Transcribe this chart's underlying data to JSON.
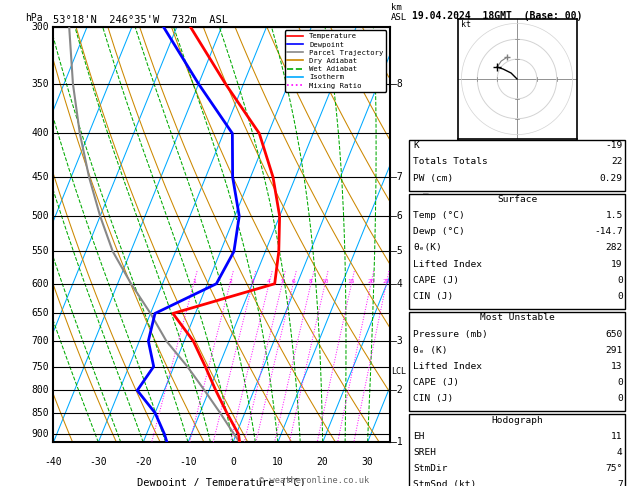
{
  "title_left": "53°18'N  246°35'W  732m  ASL",
  "title_right": "19.04.2024  18GMT  (Base: 00)",
  "xlabel": "Dewpoint / Temperature (°C)",
  "pressure_min": 300,
  "pressure_max": 920,
  "temp_min": -40,
  "temp_max": 35,
  "temp_line_color": "#ff0000",
  "dewp_line_color": "#0000ff",
  "parcel_line_color": "#888888",
  "dry_adiabat_color": "#cc8800",
  "wet_adiabat_color": "#00aa00",
  "isotherm_color": "#00aaff",
  "mixing_ratio_color": "#ff00ff",
  "temp_data": [
    [
      920,
      1.5
    ],
    [
      900,
      0.5
    ],
    [
      850,
      -4.0
    ],
    [
      800,
      -8.5
    ],
    [
      750,
      -13.0
    ],
    [
      700,
      -18.0
    ],
    [
      650,
      -25.0
    ],
    [
      600,
      -5.0
    ],
    [
      550,
      -7.0
    ],
    [
      500,
      -10.0
    ],
    [
      450,
      -15.0
    ],
    [
      400,
      -22.0
    ],
    [
      350,
      -34.0
    ],
    [
      300,
      -47.0
    ]
  ],
  "dewp_data": [
    [
      920,
      -14.7
    ],
    [
      900,
      -16.0
    ],
    [
      850,
      -20.0
    ],
    [
      800,
      -26.0
    ],
    [
      750,
      -24.5
    ],
    [
      700,
      -28.0
    ],
    [
      650,
      -29.0
    ],
    [
      600,
      -18.0
    ],
    [
      550,
      -17.0
    ],
    [
      500,
      -19.0
    ],
    [
      450,
      -24.0
    ],
    [
      400,
      -28.0
    ],
    [
      350,
      -40.0
    ],
    [
      300,
      -53.0
    ]
  ],
  "parcel_data": [
    [
      920,
      1.5
    ],
    [
      900,
      -0.5
    ],
    [
      850,
      -5.5
    ],
    [
      800,
      -11.0
    ],
    [
      750,
      -17.0
    ],
    [
      700,
      -24.0
    ],
    [
      650,
      -30.0
    ],
    [
      600,
      -37.0
    ],
    [
      550,
      -44.0
    ],
    [
      500,
      -50.0
    ],
    [
      450,
      -56.0
    ],
    [
      400,
      -62.0
    ],
    [
      350,
      -68.0
    ],
    [
      300,
      -74.0
    ]
  ],
  "km_labels": [
    "1",
    "2",
    "3",
    "4",
    "5",
    "6",
    "7",
    "8"
  ],
  "km_pressures": [
    920,
    800,
    700,
    600,
    550,
    500,
    450,
    350
  ],
  "mixing_ratio_values": [
    1,
    2,
    3,
    4,
    5,
    6,
    8,
    10,
    15,
    20,
    25
  ],
  "lcl_pressure": 760,
  "copyright": "© weatheronline.co.uk",
  "info_k": "-19",
  "info_tt": "22",
  "info_pw": "0.29",
  "info_sfc_temp": "1.5",
  "info_sfc_dewp": "-14.7",
  "info_sfc_the": "282",
  "info_sfc_li": "19",
  "info_sfc_cape": "0",
  "info_sfc_cin": "0",
  "info_mu_pres": "650",
  "info_mu_the": "291",
  "info_mu_li": "13",
  "info_mu_cape": "0",
  "info_mu_cin": "0",
  "info_hodo_eh": "11",
  "info_hodo_sreh": "4",
  "info_hodo_stmdir": "75°",
  "info_hodo_stmspd": "7"
}
